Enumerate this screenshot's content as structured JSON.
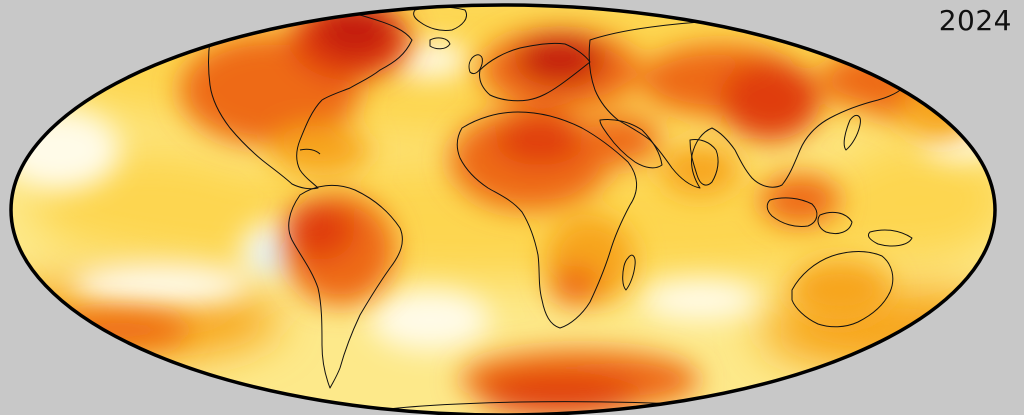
{
  "map": {
    "year": "2024",
    "projection": "mollweide",
    "colors": {
      "background": "#c8c8c8",
      "ocean_base": "#fde98a",
      "warm_light": "#fdd650",
      "warm": "#f7a51f",
      "hot": "#ee6b12",
      "hotter": "#e03d0e",
      "hottest": "#c41e10",
      "cool_white": "#fffbe8",
      "cool_blue": "#d8eefa",
      "coastline": "#111111",
      "outline": "#000000"
    }
  }
}
